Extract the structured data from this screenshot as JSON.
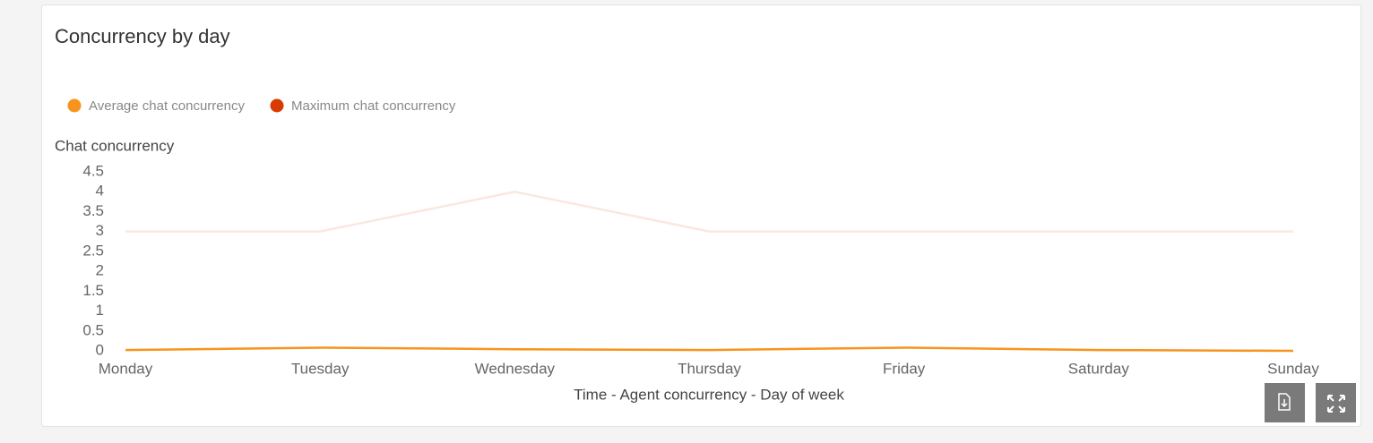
{
  "chart_data": {
    "type": "line",
    "title": "Concurrency by day",
    "y_axis_title": "Chat concurrency",
    "x_axis_title": "Time - Agent concurrency - Day of week",
    "categories": [
      "Monday",
      "Tuesday",
      "Wednesday",
      "Thursday",
      "Friday",
      "Saturday",
      "Sunday"
    ],
    "series": [
      {
        "name": "Average chat concurrency",
        "color": "#f7941d",
        "values": [
          0.02,
          0.08,
          0.04,
          0.02,
          0.08,
          0.02,
          0.0
        ]
      },
      {
        "name": "Maximum chat concurrency",
        "color": "#d83b01",
        "values": [
          3,
          3,
          4,
          3,
          3,
          3,
          3
        ]
      }
    ],
    "ylim": [
      0,
      4.5
    ],
    "yticks": [
      0,
      0.5,
      1,
      1.5,
      2,
      2.5,
      3,
      3.5,
      4,
      4.5
    ],
    "grid": false
  }
}
